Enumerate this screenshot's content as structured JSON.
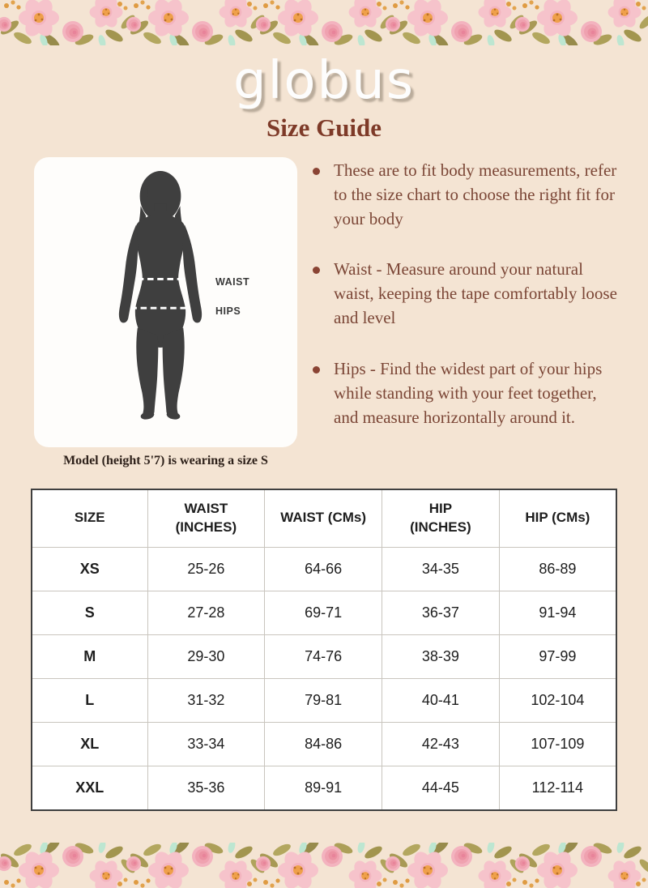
{
  "brand": {
    "name": "globus"
  },
  "header": {
    "title": "Size Guide"
  },
  "figure": {
    "waist_label": "WAIST",
    "hips_label": "HIPS",
    "model_note": "Model (height 5'7) is wearing a size S"
  },
  "tips": [
    "These are to fit body measurements, refer to the size chart to choose the right fit for your body",
    "Waist - Measure around your natural waist, keeping the tape comfortably loose and level",
    "Hips - Find the widest part of your hips while standing with your feet together, and measure horizontally around it."
  ],
  "size_table": {
    "headers": [
      [
        "SIZE",
        ""
      ],
      [
        "WAIST",
        "(INCHES)"
      ],
      [
        "WAIST (CMs)",
        ""
      ],
      [
        "HIP",
        "(INCHES)"
      ],
      [
        "HIP (CMs)",
        ""
      ]
    ],
    "rows": [
      [
        "XS",
        "25-26",
        "64-66",
        "34-35",
        "86-89"
      ],
      [
        "S",
        "27-28",
        "69-71",
        "36-37",
        "91-94"
      ],
      [
        "M",
        "29-30",
        "74-76",
        "38-39",
        "97-99"
      ],
      [
        "L",
        "31-32",
        "79-81",
        "40-41",
        "102-104"
      ],
      [
        "XL",
        "33-34",
        "84-86",
        "42-43",
        "107-109"
      ],
      [
        "XXL",
        "35-36",
        "89-91",
        "44-45",
        "112-114"
      ]
    ]
  },
  "colors": {
    "background": "#f4e4d3",
    "heading": "#7e3a28",
    "body_text": "#7b4636",
    "card": "#fefdfb",
    "silhouette": "#3f3f3f",
    "table_outer_border": "#3f3f3f",
    "table_grid": "#c9c5be",
    "flower_pink": "#f6c3cb",
    "flower_center_orange": "#efa04a",
    "leaf_olive": "#a89a55",
    "leaf_mint": "#bde6d1"
  }
}
